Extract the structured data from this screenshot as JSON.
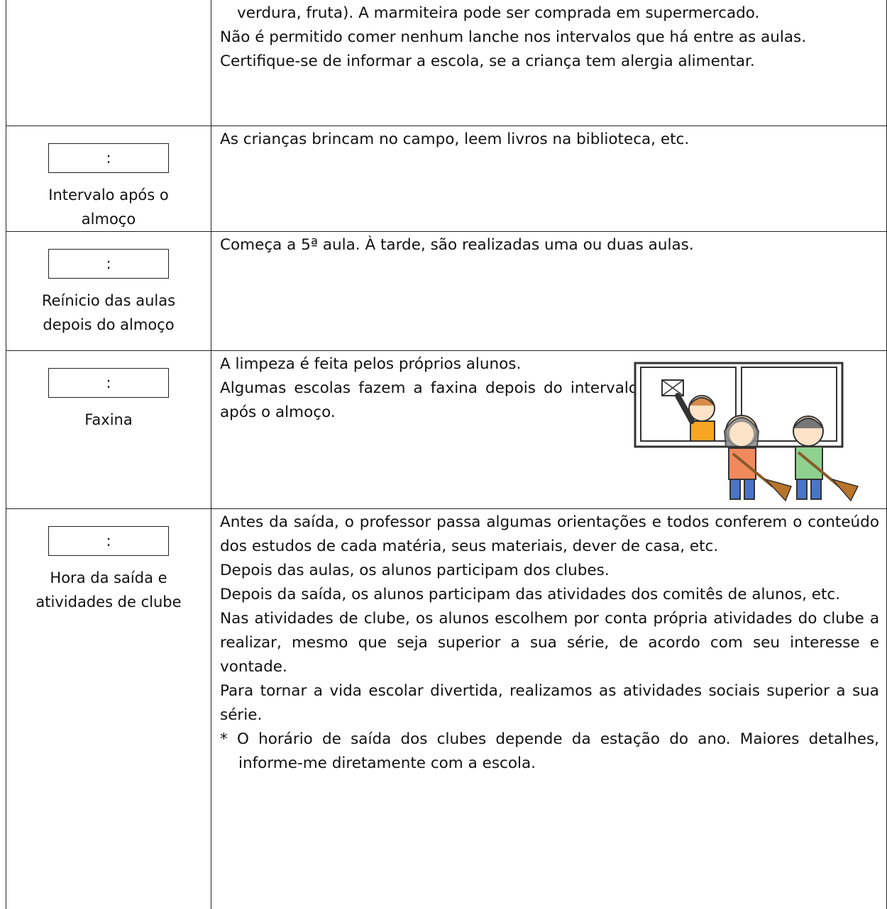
{
  "rows": [
    {
      "paragraphs": [
        "verdura, fruta). A marmiteira pode ser comprada em supermercado.",
        "Não é permitido comer nenhum lanche nos intervalos que há entre as aulas.",
        "Certifique-se de informar a escola, se a criança tem alergia alimentar."
      ]
    },
    {
      "time": ":",
      "label": "Intervalo após o almoço",
      "paragraphs": [
        "As crianças brincam no campo, leem livros na biblioteca, etc."
      ]
    },
    {
      "time": ":",
      "label": "Reínicio das aulas depois do almoço",
      "paragraphs": [
        "Começa a 5ª aula. À tarde, são realizadas uma ou duas aulas."
      ]
    },
    {
      "time": ":",
      "label": "Faxina",
      "paragraphs": [
        "A limpeza é feita pelos próprios alunos.",
        "Algumas escolas fazem a faxina depois do intervalo após o almoço."
      ]
    },
    {
      "time": ":",
      "label": "Hora da saída e atividades de clube",
      "paragraphs": [
        "Antes da saída, o professor passa algumas orientações e todos conferem o conteúdo dos estudos de cada matéria, seus materiais, dever de casa, etc.",
        "Depois das aulas, os alunos participam dos clubes.",
        "Depois da saída, os alunos participam das atividades dos comitês de alunos, etc.",
        "Nas atividades de clube, os alunos escolhem por conta própria atividades do clube a realizar, mesmo que seja superior a sua série, de acordo com seu interesse e vontade.",
        "Para tornar a vida escolar divertida, realizamos as atividades sociais superior a sua série.",
        "* O horário de saída dos clubes depende da estação do ano. Maiores detalhes, informe-me diretamente com a escola."
      ]
    }
  ]
}
